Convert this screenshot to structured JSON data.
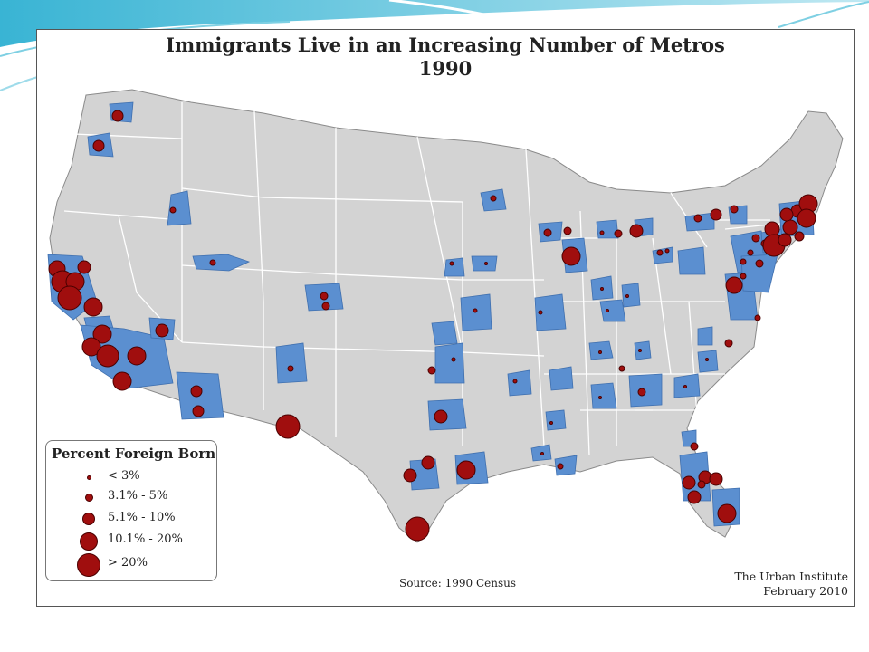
{
  "title": "Immigrants Live in an Increasing Number of Metros",
  "subtitle": "1990",
  "legend": {
    "title": "Percent Foreign Born",
    "items": [
      {
        "label": "< 3%",
        "size_class": 1
      },
      {
        "label": "3.1% - 5%",
        "size_class": 2
      },
      {
        "label": "5.1% - 10%",
        "size_class": 3
      },
      {
        "label": "10.1% - 20%",
        "size_class": 4
      },
      {
        "label": "> 20%",
        "size_class": 5
      }
    ]
  },
  "source": "Source: 1990 Census",
  "credit_org": "The Urban Institute",
  "credit_date": "February 2010",
  "colors": {
    "land": "#d3d3d3",
    "border": "#ffffff",
    "metro": "#5b8fd0",
    "dot": "#a00e0e",
    "dot_outline": "#4a0000"
  }
}
